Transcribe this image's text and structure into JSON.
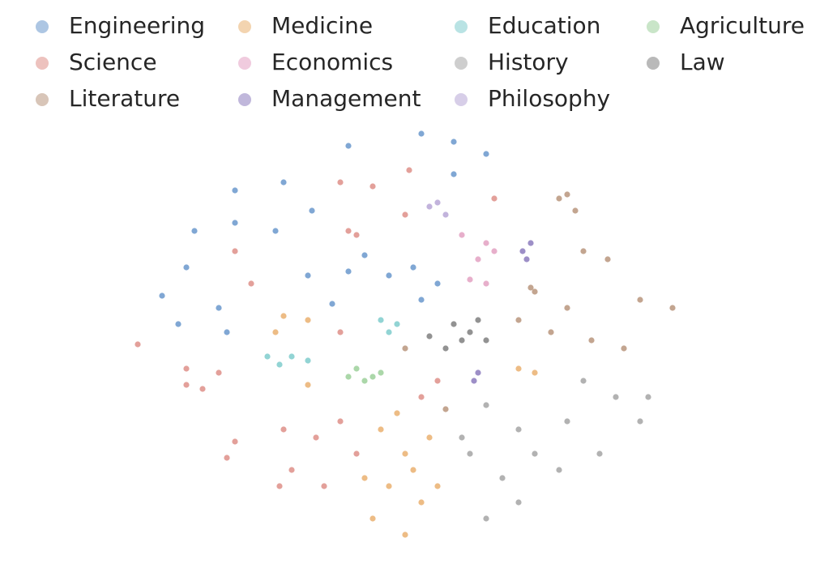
{
  "chart_data": {
    "type": "scatter",
    "xlim": [
      14,
      88
    ],
    "ylim": [
      2,
      58
    ],
    "series": [
      {
        "name": "Engineering",
        "color": "#6a98cc",
        "x": [
          43,
          52,
          56,
          60,
          35,
          29,
          24,
          29,
          38.5,
          34,
          23,
          20,
          27,
          22,
          28,
          38,
          43,
          51,
          48,
          54,
          41,
          52,
          45,
          56
        ],
        "values": [
          53.8,
          55.3,
          54.3,
          52.8,
          49.3,
          48.3,
          43.3,
          44.3,
          45.8,
          43.3,
          38.8,
          35.3,
          33.8,
          31.8,
          30.8,
          37.8,
          38.3,
          38.8,
          37.8,
          36.8,
          34.3,
          34.8,
          40.3,
          50.3
        ]
      },
      {
        "name": "Science",
        "color": "#de8f88",
        "x": [
          17,
          23,
          27,
          25,
          29,
          28,
          35,
          39,
          42,
          36,
          40,
          44,
          34.5,
          43,
          44,
          42,
          46,
          50.5,
          50,
          61,
          29,
          31,
          42,
          54,
          52,
          23
        ],
        "values": [
          29.3,
          26.3,
          25.8,
          23.8,
          17.3,
          15.3,
          18.8,
          17.8,
          19.8,
          13.8,
          11.8,
          15.8,
          11.8,
          43.3,
          42.8,
          49.3,
          48.8,
          50.8,
          45.3,
          47.3,
          40.8,
          36.8,
          30.8,
          24.8,
          22.8,
          24.3
        ]
      },
      {
        "name": "Literature",
        "color": "#b8957d",
        "x": [
          69,
          71,
          72,
          75,
          66,
          70,
          79,
          83,
          68,
          73,
          77,
          50,
          55,
          65.5,
          70,
          64
        ],
        "values": [
          47.3,
          45.8,
          40.8,
          39.8,
          35.8,
          33.8,
          34.8,
          33.8,
          30.8,
          29.8,
          28.8,
          28.8,
          21.3,
          36.3,
          47.8,
          32.3
        ]
      },
      {
        "name": "Medicine",
        "color": "#eab070",
        "x": [
          35,
          34,
          38,
          38,
          49,
          50,
          48,
          52,
          46,
          50,
          54,
          45,
          64,
          66,
          47,
          53,
          51
        ],
        "values": [
          32.8,
          30.8,
          32.3,
          24.3,
          20.8,
          15.8,
          11.8,
          9.8,
          7.8,
          5.8,
          11.8,
          12.8,
          26.3,
          25.8,
          18.8,
          17.8,
          13.8
        ]
      },
      {
        "name": "Economics",
        "color": "#e3a1c2",
        "x": [
          57,
          60,
          59,
          60,
          58,
          61
        ],
        "values": [
          42.8,
          41.8,
          39.8,
          36.8,
          37.3,
          40.8
        ]
      },
      {
        "name": "Management",
        "color": "#8c7bbd",
        "x": [
          64.5,
          65,
          65.5,
          58.5,
          59
        ],
        "values": [
          40.8,
          39.8,
          41.8,
          24.8,
          25.8
        ]
      },
      {
        "name": "Education",
        "color": "#7fcccd",
        "x": [
          47,
          49,
          48,
          33,
          36,
          38,
          34.5
        ],
        "values": [
          32.3,
          31.8,
          30.8,
          27.8,
          27.8,
          27.3,
          26.8
        ]
      },
      {
        "name": "History",
        "color": "#a5a5a5",
        "x": [
          60,
          64,
          58,
          62,
          66,
          70,
          76,
          79,
          74,
          69,
          64,
          60,
          57,
          80,
          72
        ],
        "values": [
          21.8,
          18.8,
          15.8,
          12.8,
          15.8,
          19.8,
          22.8,
          19.8,
          15.8,
          13.8,
          9.8,
          7.8,
          17.8,
          22.8,
          24.8
        ]
      },
      {
        "name": "Philosophy",
        "color": "#b7a6d6",
        "x": [
          54,
          55,
          53
        ],
        "values": [
          46.8,
          45.3,
          46.3
        ]
      },
      {
        "name": "Agriculture",
        "color": "#9cd09a",
        "x": [
          44,
          46,
          45,
          47,
          43
        ],
        "values": [
          26.3,
          25.3,
          24.8,
          25.8,
          25.3
        ]
      },
      {
        "name": "Law",
        "color": "#7f7f7f",
        "x": [
          56,
          58,
          57,
          55,
          59,
          53,
          60
        ],
        "values": [
          31.8,
          30.8,
          29.8,
          28.8,
          32.3,
          30.3,
          29.8
        ]
      }
    ]
  }
}
